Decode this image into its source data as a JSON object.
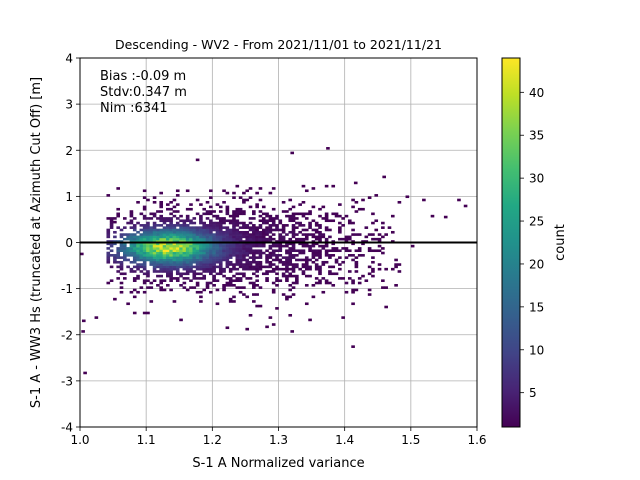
{
  "chart_data": {
    "type": "heatmap",
    "title": "Descending - WV2 - From 2021/11/01 to 2021/11/21",
    "xlabel": "S-1 A Normalized variance",
    "ylabel": "S-1 A - WW3 Hs (truncated at Azimuth Cut Off) [m]",
    "xlim": [
      1.0,
      1.6
    ],
    "ylim": [
      -4,
      4
    ],
    "x_ticks": [
      "1.0",
      "1.1",
      "1.2",
      "1.3",
      "1.4",
      "1.5",
      "1.6"
    ],
    "y_ticks": [
      "-4",
      "-3",
      "-2",
      "-1",
      "0",
      "1",
      "2",
      "3",
      "4"
    ],
    "grid": true,
    "bin_size": {
      "x": 0.005,
      "y": 0.05
    },
    "stats_lines": [
      "Bias :-0.09 m",
      "Stdv:0.347 m",
      "Nim :6341"
    ],
    "reference_line_y": 0,
    "colormap": "viridis",
    "colorbar": {
      "label": "count",
      "range": [
        1,
        44
      ],
      "ticks": [
        "5",
        "10",
        "15",
        "20",
        "25",
        "30",
        "35",
        "40"
      ]
    },
    "density_core": {
      "x_center": 1.13,
      "y_center": -0.12,
      "peak_count": 44
    },
    "outlier_bins": [
      {
        "x": 1.005,
        "y": -2.85,
        "count": 1
      },
      {
        "x": 1.003,
        "y": -1.72,
        "count": 1
      },
      {
        "x": 1.002,
        "y": -1.95,
        "count": 1
      },
      {
        "x": 1.022,
        "y": -1.65,
        "count": 1
      },
      {
        "x": 1.0,
        "y": -0.27,
        "count": 1
      },
      {
        "x": 1.175,
        "y": 1.77,
        "count": 1
      },
      {
        "x": 1.318,
        "y": 1.92,
        "count": 1
      },
      {
        "x": 1.372,
        "y": 2.02,
        "count": 1
      },
      {
        "x": 1.318,
        "y": -1.95,
        "count": 1
      },
      {
        "x": 1.41,
        "y": -2.28,
        "count": 1
      },
      {
        "x": 1.457,
        "y": 1.4,
        "count": 1
      },
      {
        "x": 1.414,
        "y": 1.27,
        "count": 1
      },
      {
        "x": 1.492,
        "y": 0.97,
        "count": 1
      },
      {
        "x": 1.517,
        "y": 0.9,
        "count": 1
      },
      {
        "x": 1.57,
        "y": 0.9,
        "count": 1
      },
      {
        "x": 1.58,
        "y": 0.77,
        "count": 1
      },
      {
        "x": 1.55,
        "y": 0.53,
        "count": 1
      },
      {
        "x": 1.53,
        "y": 0.55,
        "count": 1
      },
      {
        "x": 1.46,
        "y": -1.42,
        "count": 1
      },
      {
        "x": 1.41,
        "y": -1.1,
        "count": 1
      },
      {
        "x": 1.46,
        "y": -0.6,
        "count": 1
      },
      {
        "x": 1.48,
        "y": -0.5,
        "count": 1
      },
      {
        "x": 1.5,
        "y": -0.1,
        "count": 1
      },
      {
        "x": 1.38,
        "y": -0.3,
        "count": 1
      },
      {
        "x": 1.08,
        "y": -1.55,
        "count": 1
      },
      {
        "x": 1.1,
        "y": -1.55,
        "count": 1
      },
      {
        "x": 1.06,
        "y": -1.1,
        "count": 1
      },
      {
        "x": 1.25,
        "y": -1.9,
        "count": 1
      },
      {
        "x": 1.22,
        "y": -1.87,
        "count": 1
      },
      {
        "x": 1.05,
        "y": 0.42,
        "count": 1
      }
    ]
  }
}
